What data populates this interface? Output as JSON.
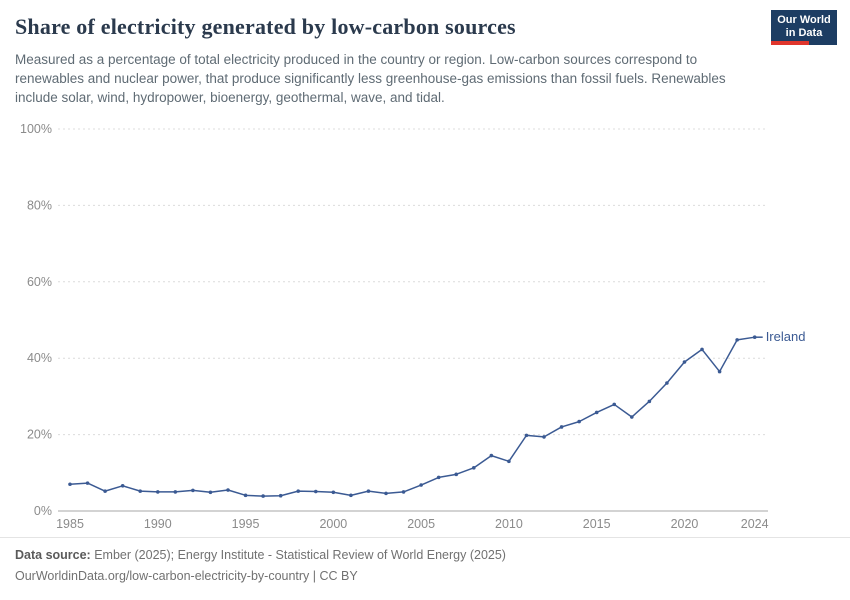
{
  "header": {
    "title": "Share of electricity generated by low-carbon sources",
    "subtitle": "Measured as a percentage of total electricity produced in the country or region. Low-carbon sources correspond to renewables and nuclear power, that produce significantly less greenhouse-gas emissions than fossil fuels. Renewables include solar, wind, hydropower, bioenergy, geothermal, wave, and tidal.",
    "logo": {
      "line1": "Our World",
      "line2": "in Data",
      "bg_color": "#1d3d63",
      "accent_color": "#e0352c"
    }
  },
  "chart_data": {
    "type": "line",
    "title": "Share of electricity generated by low-carbon sources",
    "xlabel": "",
    "ylabel": "",
    "xlim": [
      1985,
      2024
    ],
    "ylim": [
      0,
      100
    ],
    "grid": "dashed-horizontal",
    "legend_position": "end-of-line-label",
    "yticks": [
      0,
      20,
      40,
      60,
      80,
      100
    ],
    "ytick_labels": [
      "0%",
      "20%",
      "40%",
      "60%",
      "80%",
      "100%"
    ],
    "xticks": [
      1985,
      1990,
      1995,
      2000,
      2005,
      2010,
      2015,
      2020,
      2024
    ],
    "series": [
      {
        "name": "Ireland",
        "color": "#3b5a93",
        "x": [
          1985,
          1986,
          1987,
          1988,
          1989,
          1990,
          1991,
          1992,
          1993,
          1994,
          1995,
          1996,
          1997,
          1998,
          1999,
          2000,
          2001,
          2002,
          2003,
          2004,
          2005,
          2006,
          2007,
          2008,
          2009,
          2010,
          2011,
          2012,
          2013,
          2014,
          2015,
          2016,
          2017,
          2018,
          2019,
          2020,
          2021,
          2022,
          2023,
          2024
        ],
        "values": [
          7.0,
          7.3,
          5.2,
          6.6,
          5.2,
          5.0,
          5.0,
          5.4,
          4.9,
          5.5,
          4.1,
          3.9,
          4.0,
          5.2,
          5.1,
          4.9,
          4.1,
          5.2,
          4.6,
          5.0,
          6.8,
          8.8,
          9.6,
          11.3,
          14.5,
          13.0,
          19.8,
          19.4,
          22.0,
          23.4,
          25.8,
          27.9,
          24.6,
          28.7,
          33.5,
          39.0,
          42.3,
          36.5,
          44.8,
          45.5
        ]
      }
    ]
  },
  "footer": {
    "source_label": "Data source:",
    "source_text": "Ember (2025); Energy Institute - Statistical Review of World Energy (2025)",
    "citation": "OurWorldinData.org/low-carbon-electricity-by-country | CC BY"
  }
}
